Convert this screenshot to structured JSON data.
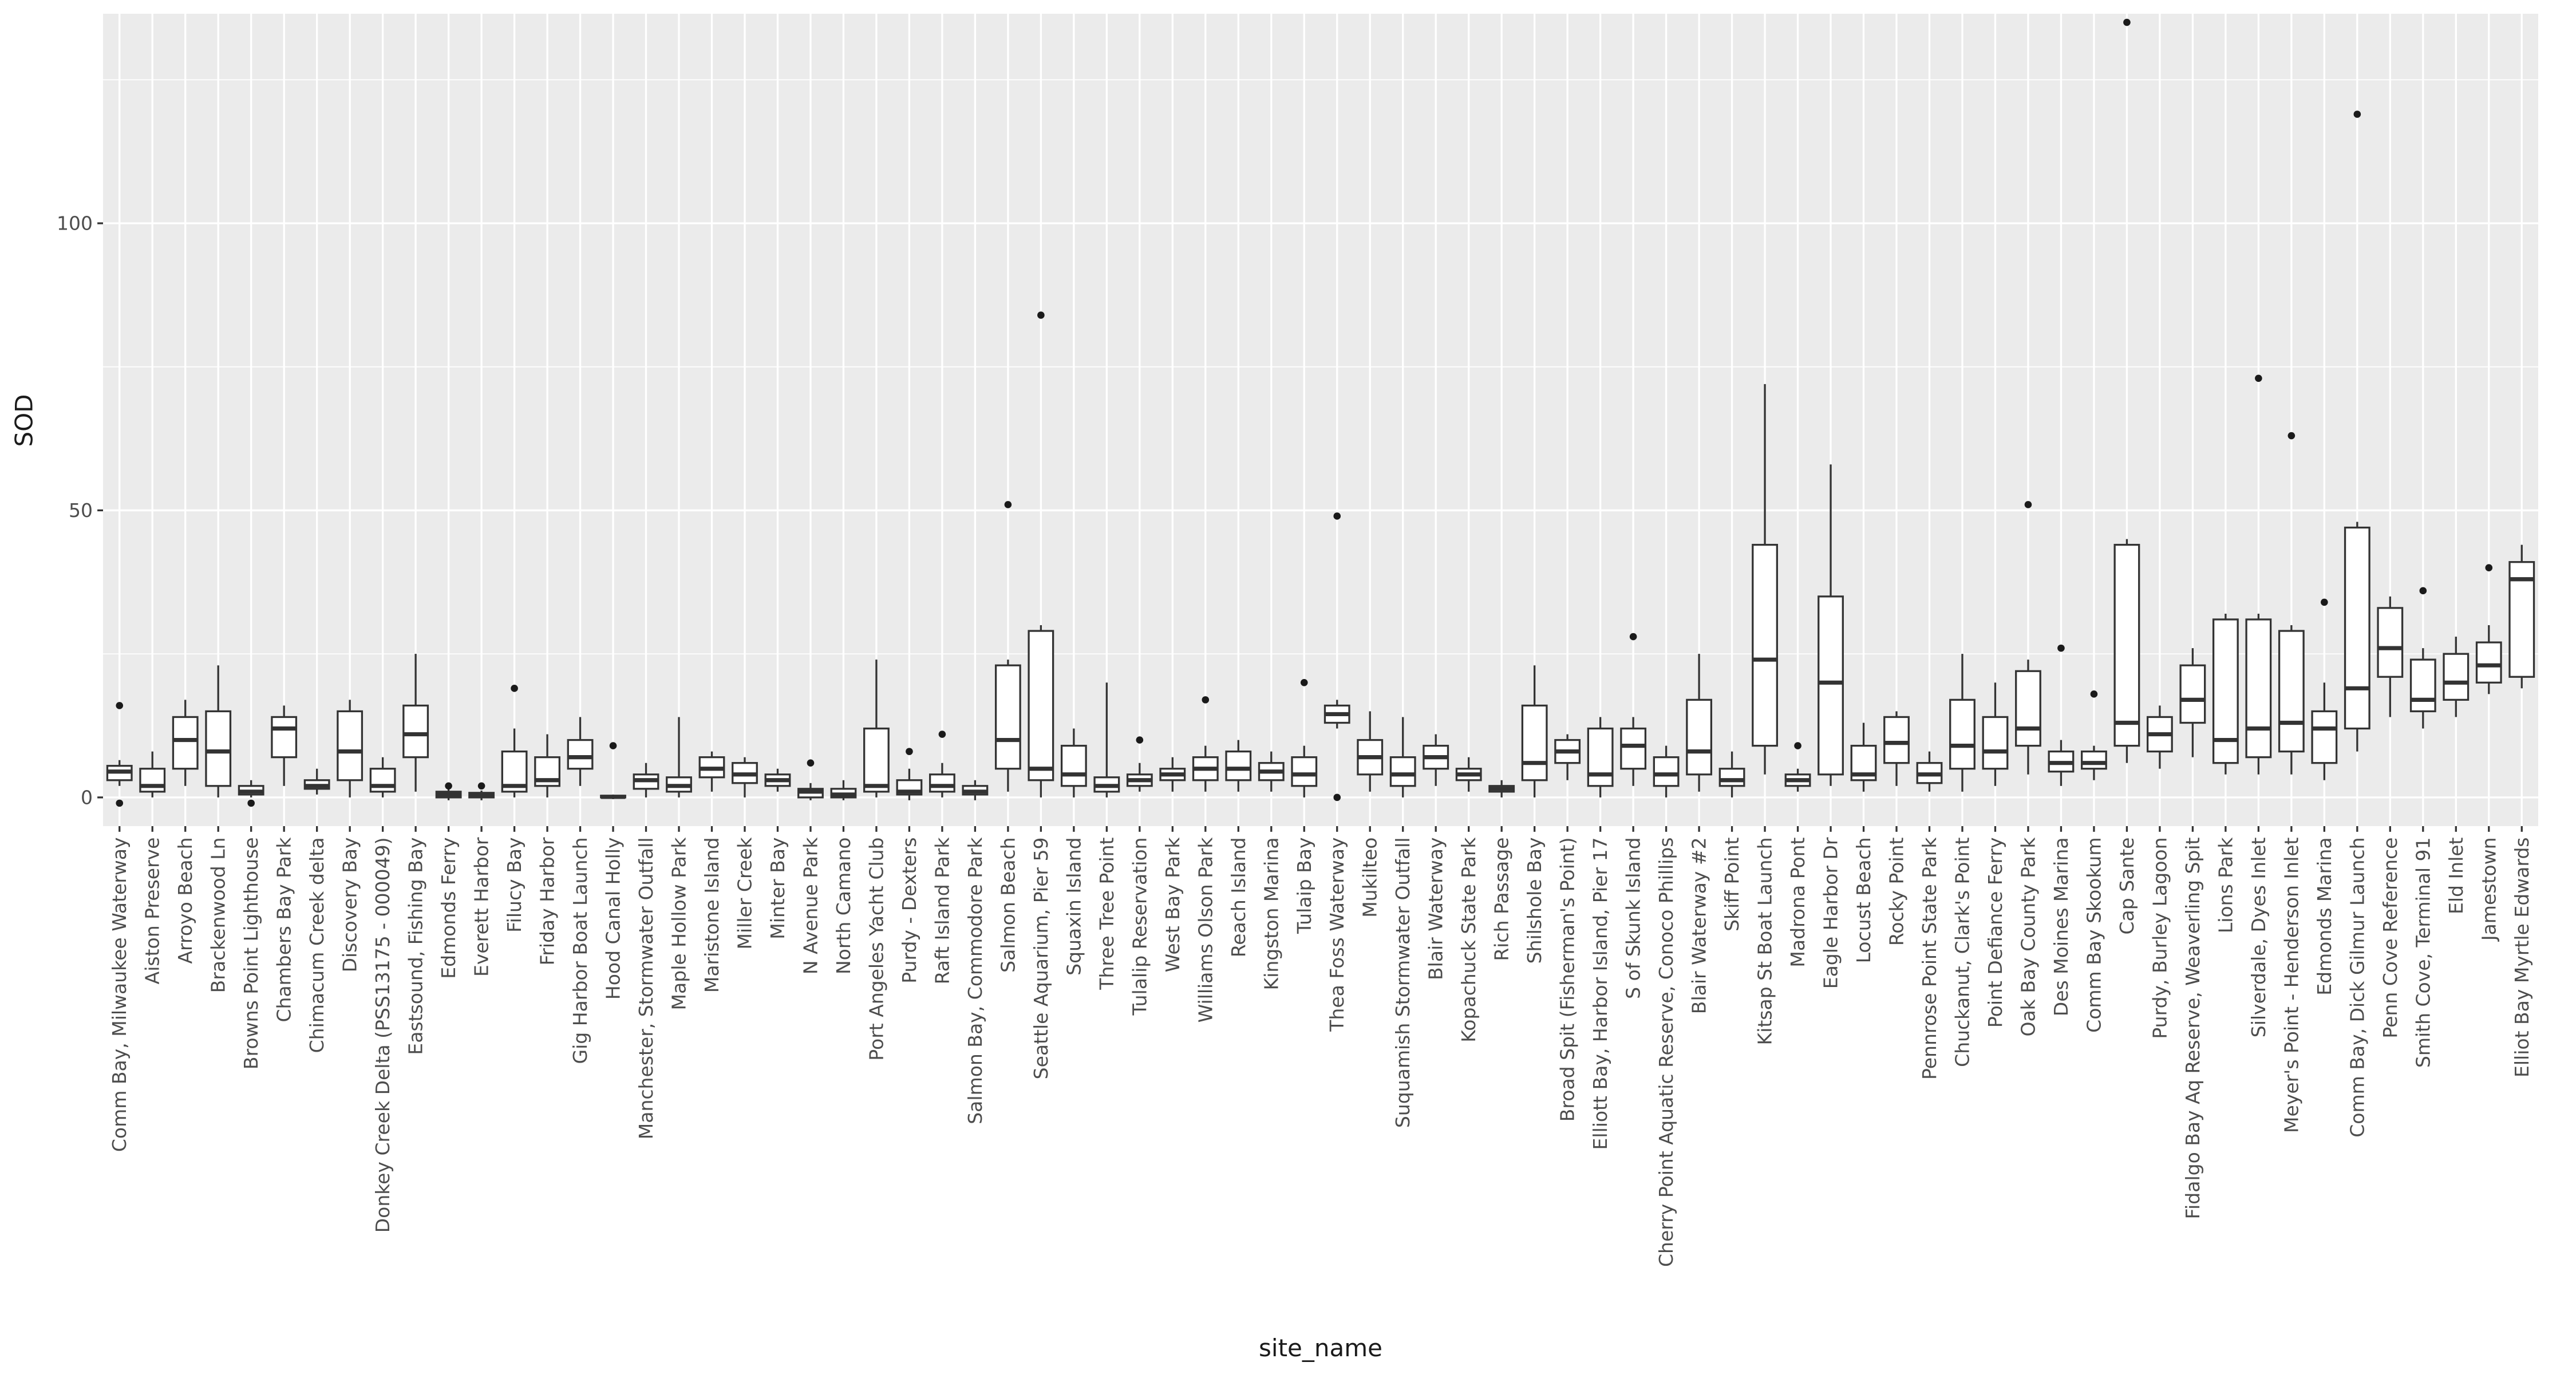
{
  "chart_data": {
    "type": "boxplot",
    "title": "",
    "xlabel": "site_name",
    "ylabel": "SOD",
    "ylim": [
      -5,
      136.5
    ],
    "yticks": [
      0,
      50,
      100
    ],
    "minor_gridlines": [
      25,
      75,
      125
    ],
    "legend": "none",
    "panel_bg": "#EBEBEB",
    "grid_color": "#FFFFFF",
    "box_fill": "#FFFFFF",
    "box_stroke": "#333333",
    "outlier_color": "#1A1A1A",
    "text_color": "#4D4D4D",
    "categories": [
      "Comm Bay, Milwaukee Waterway",
      "Aiston Preserve",
      "Arroyo Beach",
      "Brackenwood Ln",
      "Browns Point Lighthouse",
      "Chambers Bay Park",
      "Chimacum Creek delta",
      "Discovery Bay",
      "Donkey Creek Delta (PSS13175 - 000049)",
      "Eastsound, Fishing Bay",
      "Edmonds Ferry",
      "Everett Harbor",
      "Filucy Bay",
      "Friday Harbor",
      "Gig Harbor Boat Launch",
      "Hood Canal Holly",
      "Manchester, Stormwater Outfall",
      "Maple Hollow Park",
      "Maristone Island",
      "Miller Creek",
      "Minter Bay",
      "N Avenue Park",
      "North Camano",
      "Port Angeles Yacht Club",
      "Purdy - Dexters",
      "Raft Island Park",
      "Salmon Bay, Commodore Park",
      "Salmon Beach",
      "Seattle Aquarium, Pier 59",
      "Squaxin Island",
      "Three Tree Point",
      "Tulalip Reservation",
      "West Bay Park",
      "Williams Olson Park",
      "Reach Island",
      "Kingston Marina",
      "Tulaip Bay",
      "Thea Foss Waterway",
      "Mukilteo",
      "Suquamish Stormwater Outfall",
      "Blair Waterway",
      "Kopachuck State Park",
      "Rich Passage",
      "Shilshole Bay",
      "Broad Spit (Fisherman's Point)",
      "Elliott Bay, Harbor Island, Pier 17",
      "S of Skunk Island",
      "Cherry Point Aquatic Reserve, Conoco Phillips",
      "Blair Waterway #2",
      "Skiff Point",
      "Kitsap St Boat Launch",
      "Madrona Pont",
      "Eagle Harbor Dr",
      "Locust Beach",
      "Rocky Point",
      "Pennrose Point State Park",
      "Chuckanut, Clark's Point",
      "Point Defiance Ferry",
      "Oak Bay County Park",
      "Des Moines Marina",
      "Comm Bay Skookum",
      "Cap Sante",
      "Purdy, Burley Lagoon",
      "Fidalgo Bay Aq Reserve, Weaverling Spit",
      "Lions Park",
      "Silverdale, Dyes Inlet",
      "Meyer's Point - Henderson Inlet",
      "Edmonds Marina",
      "Comm Bay, Dick Gilmur Launch",
      "Penn Cove Reference",
      "Smith Cove, Terminal 91",
      "Eld Inlet",
      "Jamestown",
      "Elliot Bay Myrtle Edwards"
    ],
    "series": [
      {
        "name": "SOD",
        "boxes": [
          {
            "low": 2,
            "q1": 3,
            "med": 4.5,
            "q3": 5.5,
            "high": 6.5,
            "outliers": [
              -1,
              16
            ]
          },
          {
            "low": 0,
            "q1": 1,
            "med": 2,
            "q3": 5,
            "high": 8,
            "outliers": []
          },
          {
            "low": 2,
            "q1": 5,
            "med": 10,
            "q3": 14,
            "high": 17,
            "outliers": []
          },
          {
            "low": 0,
            "q1": 2,
            "med": 8,
            "q3": 15,
            "high": 23,
            "outliers": []
          },
          {
            "low": 0,
            "q1": 0.5,
            "med": 1,
            "q3": 2,
            "high": 3,
            "outliers": [
              -1
            ]
          },
          {
            "low": 2,
            "q1": 7,
            "med": 12,
            "q3": 14,
            "high": 16,
            "outliers": []
          },
          {
            "low": 0.5,
            "q1": 1.5,
            "med": 2,
            "q3": 3,
            "high": 5,
            "outliers": []
          },
          {
            "low": 0,
            "q1": 3,
            "med": 8,
            "q3": 15,
            "high": 17,
            "outliers": []
          },
          {
            "low": 0,
            "q1": 1,
            "med": 2,
            "q3": 5,
            "high": 7,
            "outliers": []
          },
          {
            "low": 1,
            "q1": 7,
            "med": 11,
            "q3": 16,
            "high": 25,
            "outliers": []
          },
          {
            "low": -0.5,
            "q1": 0,
            "med": 0.5,
            "q3": 1,
            "high": 1.5,
            "outliers": [
              2
            ]
          },
          {
            "low": -0.5,
            "q1": 0,
            "med": 0.3,
            "q3": 0.8,
            "high": 1.2,
            "outliers": [
              2
            ]
          },
          {
            "low": 0,
            "q1": 1,
            "med": 2,
            "q3": 8,
            "high": 12,
            "outliers": [
              19
            ]
          },
          {
            "low": 0,
            "q1": 2,
            "med": 3,
            "q3": 7,
            "high": 11,
            "outliers": []
          },
          {
            "low": 2,
            "q1": 5,
            "med": 7,
            "q3": 10,
            "high": 14,
            "outliers": []
          },
          {
            "low": -0.3,
            "q1": 0,
            "med": 0.1,
            "q3": 0.3,
            "high": 0.5,
            "outliers": [
              9
            ]
          },
          {
            "low": 0,
            "q1": 1.5,
            "med": 3,
            "q3": 4,
            "high": 6,
            "outliers": []
          },
          {
            "low": 0,
            "q1": 1,
            "med": 2,
            "q3": 3.5,
            "high": 14,
            "outliers": []
          },
          {
            "low": 1,
            "q1": 3.5,
            "med": 5,
            "q3": 7,
            "high": 8,
            "outliers": []
          },
          {
            "low": 0,
            "q1": 2.5,
            "med": 4,
            "q3": 6,
            "high": 7,
            "outliers": []
          },
          {
            "low": 1,
            "q1": 2,
            "med": 3,
            "q3": 4,
            "high": 5,
            "outliers": []
          },
          {
            "low": -0.5,
            "q1": 0,
            "med": 1,
            "q3": 1.5,
            "high": 2.5,
            "outliers": [
              6
            ]
          },
          {
            "low": -0.5,
            "q1": 0,
            "med": 0.5,
            "q3": 1.5,
            "high": 3,
            "outliers": []
          },
          {
            "low": 0,
            "q1": 1,
            "med": 2,
            "q3": 12,
            "high": 24,
            "outliers": []
          },
          {
            "low": -0.5,
            "q1": 0.5,
            "med": 1,
            "q3": 3,
            "high": 5,
            "outliers": [
              8
            ]
          },
          {
            "low": 0,
            "q1": 1,
            "med": 2,
            "q3": 4,
            "high": 6,
            "outliers": [
              11
            ]
          },
          {
            "low": -0.5,
            "q1": 0.5,
            "med": 1,
            "q3": 2,
            "high": 3,
            "outliers": []
          },
          {
            "low": 1,
            "q1": 5,
            "med": 10,
            "q3": 23,
            "high": 24,
            "outliers": [
              51
            ]
          },
          {
            "low": 0,
            "q1": 3,
            "med": 5,
            "q3": 29,
            "high": 30,
            "outliers": [
              84
            ]
          },
          {
            "low": 0,
            "q1": 2,
            "med": 4,
            "q3": 9,
            "high": 12,
            "outliers": []
          },
          {
            "low": 0,
            "q1": 1,
            "med": 2,
            "q3": 3.5,
            "high": 20,
            "outliers": []
          },
          {
            "low": 1,
            "q1": 2,
            "med": 3,
            "q3": 4,
            "high": 6,
            "outliers": [
              10
            ]
          },
          {
            "low": 1,
            "q1": 3,
            "med": 4,
            "q3": 5,
            "high": 7,
            "outliers": []
          },
          {
            "low": 1,
            "q1": 3,
            "med": 5,
            "q3": 7,
            "high": 9,
            "outliers": [
              17
            ]
          },
          {
            "low": 1,
            "q1": 3,
            "med": 5,
            "q3": 8,
            "high": 10,
            "outliers": []
          },
          {
            "low": 1,
            "q1": 3,
            "med": 4.5,
            "q3": 6,
            "high": 8,
            "outliers": []
          },
          {
            "low": 0,
            "q1": 2,
            "med": 4,
            "q3": 7,
            "high": 9,
            "outliers": [
              20
            ]
          },
          {
            "low": 12,
            "q1": 13,
            "med": 14.5,
            "q3": 16,
            "high": 17,
            "outliers": [
              49,
              0
            ]
          },
          {
            "low": 1,
            "q1": 4,
            "med": 7,
            "q3": 10,
            "high": 15,
            "outliers": []
          },
          {
            "low": 0,
            "q1": 2,
            "med": 4,
            "q3": 7,
            "high": 14,
            "outliers": []
          },
          {
            "low": 2,
            "q1": 5,
            "med": 7,
            "q3": 9,
            "high": 11,
            "outliers": []
          },
          {
            "low": 1,
            "q1": 3,
            "med": 4,
            "q3": 5,
            "high": 7,
            "outliers": []
          },
          {
            "low": 0,
            "q1": 1,
            "med": 1.5,
            "q3": 2,
            "high": 3,
            "outliers": []
          },
          {
            "low": 0,
            "q1": 3,
            "med": 6,
            "q3": 16,
            "high": 23,
            "outliers": []
          },
          {
            "low": 3,
            "q1": 6,
            "med": 8,
            "q3": 10,
            "high": 11,
            "outliers": []
          },
          {
            "low": 0,
            "q1": 2,
            "med": 4,
            "q3": 12,
            "high": 14,
            "outliers": []
          },
          {
            "low": 2,
            "q1": 5,
            "med": 9,
            "q3": 12,
            "high": 14,
            "outliers": [
              28
            ]
          },
          {
            "low": 0,
            "q1": 2,
            "med": 4,
            "q3": 7,
            "high": 9,
            "outliers": []
          },
          {
            "low": 1,
            "q1": 4,
            "med": 8,
            "q3": 17,
            "high": 25,
            "outliers": []
          },
          {
            "low": 0,
            "q1": 2,
            "med": 3,
            "q3": 5,
            "high": 8,
            "outliers": []
          },
          {
            "low": 4,
            "q1": 9,
            "med": 24,
            "q3": 44,
            "high": 72,
            "outliers": []
          },
          {
            "low": 1,
            "q1": 2,
            "med": 3,
            "q3": 4,
            "high": 5,
            "outliers": [
              9
            ]
          },
          {
            "low": 2,
            "q1": 4,
            "med": 20,
            "q3": 35,
            "high": 58,
            "outliers": []
          },
          {
            "low": 1,
            "q1": 3,
            "med": 4,
            "q3": 9,
            "high": 13,
            "outliers": []
          },
          {
            "low": 2,
            "q1": 6,
            "med": 9.5,
            "q3": 14,
            "high": 15,
            "outliers": []
          },
          {
            "low": 1,
            "q1": 2.5,
            "med": 4,
            "q3": 6,
            "high": 8,
            "outliers": []
          },
          {
            "low": 1,
            "q1": 5,
            "med": 9,
            "q3": 17,
            "high": 25,
            "outliers": []
          },
          {
            "low": 2,
            "q1": 5,
            "med": 8,
            "q3": 14,
            "high": 20,
            "outliers": []
          },
          {
            "low": 4,
            "q1": 9,
            "med": 12,
            "q3": 22,
            "high": 24,
            "outliers": [
              51
            ]
          },
          {
            "low": 2,
            "q1": 4.5,
            "med": 6,
            "q3": 8,
            "high": 10,
            "outliers": [
              26
            ]
          },
          {
            "low": 3,
            "q1": 5,
            "med": 6,
            "q3": 8,
            "high": 9,
            "outliers": [
              18
            ]
          },
          {
            "low": 6,
            "q1": 9,
            "med": 13,
            "q3": 44,
            "high": 45,
            "outliers": [
              135
            ]
          },
          {
            "low": 5,
            "q1": 8,
            "med": 11,
            "q3": 14,
            "high": 16,
            "outliers": []
          },
          {
            "low": 7,
            "q1": 13,
            "med": 17,
            "q3": 23,
            "high": 26,
            "outliers": []
          },
          {
            "low": 4,
            "q1": 6,
            "med": 10,
            "q3": 31,
            "high": 32,
            "outliers": []
          },
          {
            "low": 4,
            "q1": 7,
            "med": 12,
            "q3": 31,
            "high": 32,
            "outliers": [
              73
            ]
          },
          {
            "low": 4,
            "q1": 8,
            "med": 13,
            "q3": 29,
            "high": 30,
            "outliers": [
              63
            ]
          },
          {
            "low": 3,
            "q1": 6,
            "med": 12,
            "q3": 15,
            "high": 20,
            "outliers": [
              34
            ]
          },
          {
            "low": 8,
            "q1": 12,
            "med": 19,
            "q3": 47,
            "high": 48,
            "outliers": [
              119
            ]
          },
          {
            "low": 14,
            "q1": 21,
            "med": 26,
            "q3": 33,
            "high": 35,
            "outliers": []
          },
          {
            "low": 12,
            "q1": 15,
            "med": 17,
            "q3": 24,
            "high": 26,
            "outliers": [
              36
            ]
          },
          {
            "low": 14,
            "q1": 17,
            "med": 20,
            "q3": 25,
            "high": 28,
            "outliers": []
          },
          {
            "low": 18,
            "q1": 20,
            "med": 23,
            "q3": 27,
            "high": 30,
            "outliers": [
              40
            ]
          },
          {
            "low": 19,
            "q1": 21,
            "med": 38,
            "q3": 41,
            "high": 44,
            "outliers": []
          }
        ]
      }
    ]
  }
}
